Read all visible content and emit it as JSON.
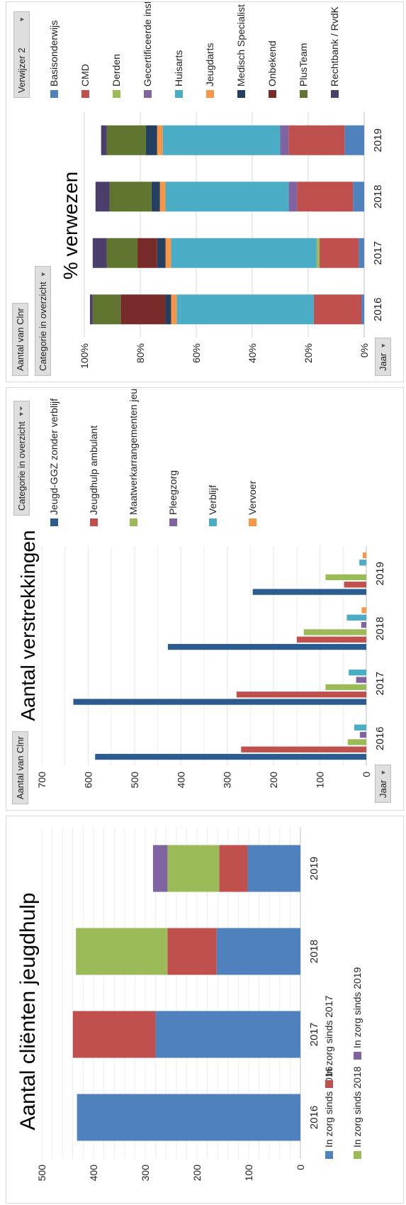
{
  "colors": {
    "blue": "#4f81bd",
    "red": "#c0504d",
    "green": "#9bbb59",
    "purple": "#8064a2",
    "teal": "#4bacc6",
    "orange": "#f79646",
    "darkblue": "#2c5c8f",
    "darkred": "#772c2a",
    "darkgreen": "#5f7530",
    "navy": "#243f60",
    "deeppurple": "#4c3e6b"
  },
  "controls": {
    "chart2_field": "Aantal van Clnr",
    "chart2_axis": "Jaar",
    "chart2_legend_filter": "Categorie in overzicht",
    "chart3_field": "Aantal van Clnr",
    "chart3_category_filter": "Categorie in overzicht",
    "chart3_legend_filter": "Verwijzer 2",
    "chart3_axis": "Jaar"
  },
  "chart_data": [
    {
      "type": "bar",
      "stacked": true,
      "title": "Aantal cliënten jeugdhulp",
      "categories": [
        "2016",
        "2017",
        "2018",
        "2019"
      ],
      "ylim": [
        0,
        500
      ],
      "yticks": [
        "0",
        "100",
        "200",
        "300",
        "400",
        "500"
      ],
      "legend_position": "bottom",
      "series": [
        {
          "name": "In zorg sinds 2016",
          "color_key": "blue",
          "values": [
            432,
            280,
            162,
            102
          ]
        },
        {
          "name": "In zorg sinds 2017",
          "color_key": "red",
          "values": [
            0,
            160,
            95,
            55
          ]
        },
        {
          "name": "In zorg sinds 2018",
          "color_key": "green",
          "values": [
            0,
            0,
            177,
            100
          ]
        },
        {
          "name": "In zorg sinds 2019",
          "color_key": "purple",
          "values": [
            0,
            0,
            0,
            28
          ]
        }
      ]
    },
    {
      "type": "bar",
      "title": "Aantal verstrekkingen",
      "categories": [
        "2016",
        "2017",
        "2018",
        "2019"
      ],
      "ylim": [
        0,
        700
      ],
      "yticks": [
        "0",
        "100",
        "200",
        "300",
        "400",
        "500",
        "600",
        "700"
      ],
      "legend_position": "right",
      "series": [
        {
          "name": "Jeugd-GGZ zonder verblijf",
          "color_key": "darkblue",
          "values": [
            585,
            632,
            428,
            245
          ]
        },
        {
          "name": "Jeugdhulp ambulant",
          "color_key": "red",
          "values": [
            270,
            280,
            150,
            48
          ]
        },
        {
          "name": "Maatwerkarrangementen jeugd",
          "color_key": "green",
          "values": [
            40,
            88,
            135,
            88
          ]
        },
        {
          "name": "Pleegzorg",
          "color_key": "purple",
          "values": [
            14,
            22,
            11,
            0
          ]
        },
        {
          "name": "Verblijf",
          "color_key": "teal",
          "values": [
            26,
            38,
            42,
            15
          ]
        },
        {
          "name": "Vervoer",
          "color_key": "orange",
          "values": [
            0,
            0,
            10,
            8
          ]
        }
      ]
    },
    {
      "type": "bar",
      "stacked": true,
      "percent": true,
      "title": "% verwezen",
      "categories": [
        "2016",
        "2017",
        "2018",
        "2019"
      ],
      "ylim": [
        0,
        100
      ],
      "yticks": [
        "0%",
        "20%",
        "40%",
        "60%",
        "80%",
        "100%"
      ],
      "legend_position": "right",
      "series": [
        {
          "name": "Basisonderwijs",
          "color_key": "blue",
          "values": [
            1,
            2,
            4,
            7
          ]
        },
        {
          "name": "CMD",
          "color_key": "red",
          "values": [
            17,
            14,
            20,
            20
          ]
        },
        {
          "name": "Derden",
          "color_key": "green",
          "values": [
            0,
            1,
            0,
            0
          ]
        },
        {
          "name": "Gecertificeerde instelling",
          "color_key": "purple",
          "values": [
            0,
            0,
            3,
            3
          ]
        },
        {
          "name": "Huisarts",
          "color_key": "teal",
          "values": [
            49,
            52,
            44,
            42
          ]
        },
        {
          "name": "Jeugdarts",
          "color_key": "orange",
          "values": [
            2,
            2,
            2,
            2
          ]
        },
        {
          "name": "Medisch Specialist",
          "color_key": "navy",
          "values": [
            2,
            3,
            3,
            4
          ]
        },
        {
          "name": "Onbekend",
          "color_key": "darkred",
          "values": [
            16,
            7,
            0,
            0
          ]
        },
        {
          "name": "PlusTeam",
          "color_key": "darkgreen",
          "values": [
            10,
            11,
            15,
            14
          ]
        },
        {
          "name": "Rechtbank / RvdK",
          "color_key": "deeppurple",
          "values": [
            1,
            5,
            5,
            2
          ]
        }
      ]
    }
  ]
}
